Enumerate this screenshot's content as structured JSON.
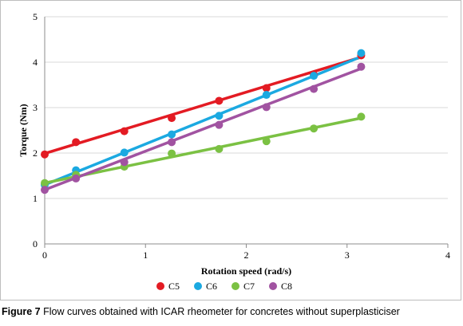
{
  "chart_data": {
    "type": "scatter",
    "title": "",
    "xlabel": "Rotation speed (rad/s)",
    "ylabel": "Torque (Nm)",
    "xlim": [
      0,
      4
    ],
    "ylim": [
      0,
      5
    ],
    "xticks": [
      "0",
      "1",
      "2",
      "3",
      "4"
    ],
    "yticks": [
      "0",
      "1",
      "2",
      "3",
      "4",
      "5"
    ],
    "grid": true,
    "legend_placement": "bottom",
    "series": [
      {
        "name": "C5",
        "color": "#e31b23",
        "points": [
          [
            0.0,
            1.97
          ],
          [
            0.31,
            2.24
          ],
          [
            0.79,
            2.48
          ],
          [
            1.26,
            2.77
          ],
          [
            1.73,
            3.15
          ],
          [
            2.2,
            3.43
          ],
          [
            2.67,
            3.72
          ],
          [
            3.14,
            4.15
          ]
        ],
        "fit": [
          [
            0.0,
            1.99
          ],
          [
            3.14,
            4.11
          ]
        ]
      },
      {
        "name": "C6",
        "color": "#1ba9e1",
        "points": [
          [
            0.0,
            1.3
          ],
          [
            0.31,
            1.62
          ],
          [
            0.79,
            2.01
          ],
          [
            1.26,
            2.41
          ],
          [
            1.73,
            2.82
          ],
          [
            2.2,
            3.28
          ],
          [
            2.67,
            3.7
          ],
          [
            3.14,
            4.2
          ]
        ],
        "fit": [
          [
            0.0,
            1.3
          ],
          [
            3.14,
            4.12
          ]
        ]
      },
      {
        "name": "C7",
        "color": "#7bc143",
        "points": [
          [
            0.0,
            1.34
          ],
          [
            0.31,
            1.52
          ],
          [
            0.79,
            1.7
          ],
          [
            1.26,
            1.99
          ],
          [
            1.73,
            2.09
          ],
          [
            2.2,
            2.26
          ],
          [
            2.67,
            2.54
          ],
          [
            3.14,
            2.8
          ]
        ],
        "fit": [
          [
            0.0,
            1.34
          ],
          [
            3.14,
            2.77
          ]
        ]
      },
      {
        "name": "C8",
        "color": "#a153a1",
        "points": [
          [
            0.0,
            1.19
          ],
          [
            0.31,
            1.44
          ],
          [
            0.79,
            1.8
          ],
          [
            1.26,
            2.24
          ],
          [
            1.73,
            2.62
          ],
          [
            2.2,
            3.01
          ],
          [
            2.67,
            3.41
          ],
          [
            3.14,
            3.9
          ]
        ],
        "fit": [
          [
            0.0,
            1.19
          ],
          [
            3.14,
            3.86
          ]
        ]
      }
    ]
  },
  "caption": {
    "label": "Figure 7",
    "text": "Flow curves obtained with ICAR rheometer for concretes without superplasticiser"
  }
}
